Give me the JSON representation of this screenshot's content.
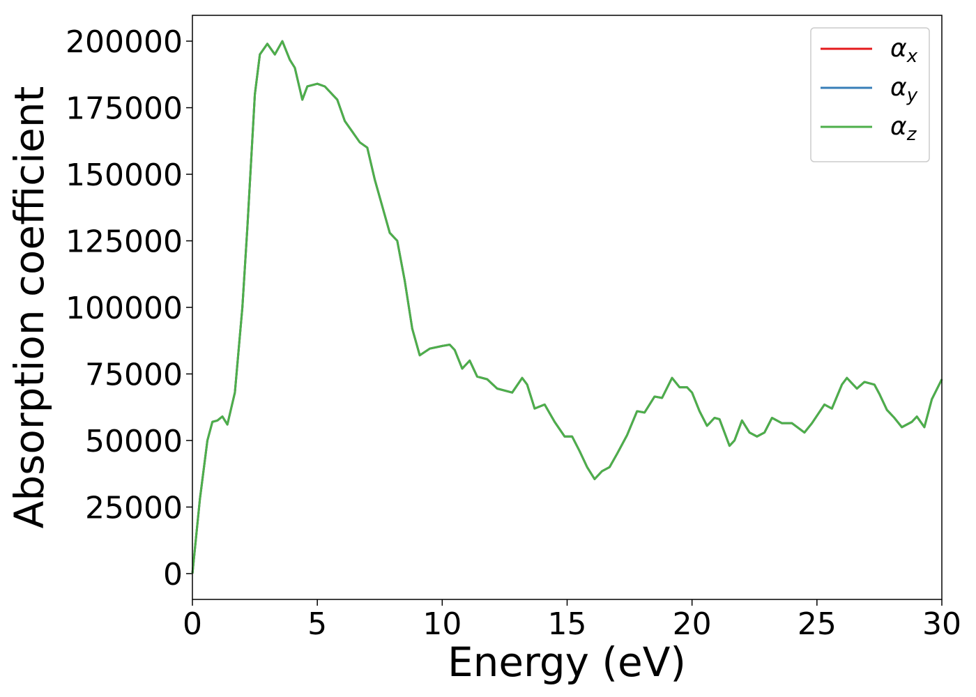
{
  "chart_data": {
    "type": "line",
    "x_label": "Energy (eV)",
    "y_label": "Absorption coefficient",
    "x": [
      0,
      0.3,
      0.6,
      0.8,
      1.0,
      1.2,
      1.4,
      1.7,
      2.0,
      2.2,
      2.5,
      2.7,
      3.0,
      3.3,
      3.6,
      3.9,
      4.1,
      4.4,
      4.6,
      5.0,
      5.3,
      5.5,
      5.8,
      6.1,
      6.4,
      6.7,
      7.0,
      7.3,
      7.6,
      7.9,
      8.2,
      8.5,
      8.8,
      9.1,
      9.5,
      10.0,
      10.3,
      10.5,
      10.8,
      11.1,
      11.4,
      11.8,
      12.2,
      12.8,
      13.2,
      13.4,
      13.7,
      14.1,
      14.5,
      14.9,
      15.2,
      15.5,
      15.8,
      16.1,
      16.4,
      16.7,
      17.0,
      17.4,
      17.8,
      18.1,
      18.5,
      18.8,
      19.2,
      19.5,
      19.8,
      20.0,
      20.3,
      20.6,
      20.9,
      21.1,
      21.5,
      21.7,
      22.0,
      22.3,
      22.6,
      22.9,
      23.2,
      23.6,
      24.0,
      24.5,
      24.8,
      25.3,
      25.6,
      26.0,
      26.2,
      26.6,
      26.9,
      27.3,
      27.5,
      27.8,
      28.1,
      28.4,
      28.8,
      29.0,
      29.3,
      29.6,
      30.0
    ],
    "series": [
      {
        "name": "αx",
        "color": "#e41a1c",
        "values": [
          0,
          28000,
          50000,
          57000,
          57500,
          59000,
          56000,
          68000,
          100000,
          130000,
          180000,
          195000,
          199000,
          195000,
          200000,
          193000,
          190000,
          178000,
          183000,
          184000,
          183000,
          181000,
          178000,
          170000,
          166000,
          162000,
          160000,
          148000,
          138000,
          128000,
          125000,
          110000,
          92000,
          82000,
          84500,
          85500,
          86000,
          84000,
          77000,
          80000,
          74000,
          73000,
          69500,
          68000,
          73500,
          71000,
          62000,
          63500,
          57000,
          51500,
          51500,
          46000,
          40000,
          35500,
          38500,
          40000,
          45000,
          52000,
          61000,
          60500,
          66500,
          66000,
          73500,
          70000,
          70000,
          68000,
          61000,
          55500,
          58500,
          58000,
          48000,
          50000,
          57500,
          53000,
          51500,
          53000,
          58500,
          56500,
          56500,
          53000,
          56500,
          63500,
          62000,
          71000,
          73500,
          69500,
          72000,
          71000,
          67500,
          61500,
          58500,
          55000,
          57000,
          59000,
          55000,
          65500,
          73000
        ]
      },
      {
        "name": "αy",
        "color": "#377eb8",
        "values": [
          0,
          28000,
          50000,
          57000,
          57500,
          59000,
          56000,
          68000,
          100000,
          130000,
          180000,
          195000,
          199000,
          195000,
          200000,
          193000,
          190000,
          178000,
          183000,
          184000,
          183000,
          181000,
          178000,
          170000,
          166000,
          162000,
          160000,
          148000,
          138000,
          128000,
          125000,
          110000,
          92000,
          82000,
          84500,
          85500,
          86000,
          84000,
          77000,
          80000,
          74000,
          73000,
          69500,
          68000,
          73500,
          71000,
          62000,
          63500,
          57000,
          51500,
          51500,
          46000,
          40000,
          35500,
          38500,
          40000,
          45000,
          52000,
          61000,
          60500,
          66500,
          66000,
          73500,
          70000,
          70000,
          68000,
          61000,
          55500,
          58500,
          58000,
          48000,
          50000,
          57500,
          53000,
          51500,
          53000,
          58500,
          56500,
          56500,
          53000,
          56500,
          63500,
          62000,
          71000,
          73500,
          69500,
          72000,
          71000,
          67500,
          61500,
          58500,
          55000,
          57000,
          59000,
          55000,
          65500,
          73000
        ]
      },
      {
        "name": "αz",
        "color": "#4daf4a",
        "values": [
          0,
          28000,
          50000,
          57000,
          57500,
          59000,
          56000,
          68000,
          100000,
          130000,
          180000,
          195000,
          199000,
          195000,
          200000,
          193000,
          190000,
          178000,
          183000,
          184000,
          183000,
          181000,
          178000,
          170000,
          166000,
          162000,
          160000,
          148000,
          138000,
          128000,
          125000,
          110000,
          92000,
          82000,
          84500,
          85500,
          86000,
          84000,
          77000,
          80000,
          74000,
          73000,
          69500,
          68000,
          73500,
          71000,
          62000,
          63500,
          57000,
          51500,
          51500,
          46000,
          40000,
          35500,
          38500,
          40000,
          45000,
          52000,
          61000,
          60500,
          66500,
          66000,
          73500,
          70000,
          70000,
          68000,
          61000,
          55500,
          58500,
          58000,
          48000,
          50000,
          57500,
          53000,
          51500,
          53000,
          58500,
          56500,
          56500,
          53000,
          56500,
          63500,
          62000,
          71000,
          73500,
          69500,
          72000,
          71000,
          67500,
          61500,
          58500,
          55000,
          57000,
          59000,
          55000,
          65500,
          73000
        ]
      }
    ],
    "xlim": [
      0,
      30
    ],
    "ylim": [
      -9700,
      209700
    ],
    "xticks": [
      0,
      5,
      10,
      15,
      20,
      25,
      30
    ],
    "yticks": [
      0,
      25000,
      50000,
      75000,
      100000,
      125000,
      150000,
      175000,
      200000
    ],
    "legend": "upper right"
  }
}
